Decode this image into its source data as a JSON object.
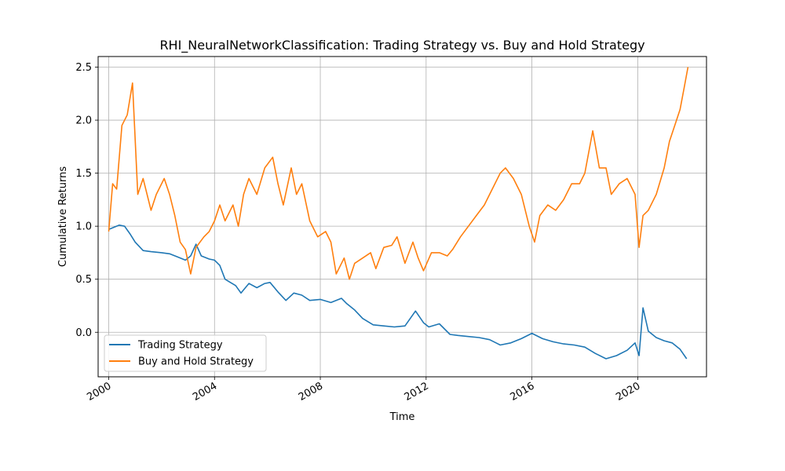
{
  "chart_data": {
    "type": "line",
    "title": "RHI_NeuralNetworkClassification: Trading Strategy vs. Buy and Hold Strategy",
    "xlabel": "Time",
    "ylabel": "Cumulative Returns",
    "xlim": [
      1999.6,
      2022.6
    ],
    "ylim": [
      -0.42,
      2.6
    ],
    "x_ticks": [
      2000,
      2004,
      2008,
      2012,
      2016,
      2020
    ],
    "x_tick_labels": [
      "2000",
      "2004",
      "2008",
      "2012",
      "2016",
      "2020"
    ],
    "y_ticks": [
      0.0,
      0.5,
      1.0,
      1.5,
      2.0,
      2.5
    ],
    "y_tick_labels": [
      "0.0",
      "0.5",
      "1.0",
      "1.5",
      "2.0",
      "2.5"
    ],
    "grid": true,
    "legend_position": "lower-left",
    "series": [
      {
        "name": "Trading Strategy",
        "color": "#1f77b4",
        "x": [
          2000.0,
          2000.2,
          2000.4,
          2000.6,
          2000.8,
          2001.0,
          2001.3,
          2001.6,
          2002.0,
          2002.3,
          2002.6,
          2002.9,
          2003.1,
          2003.3,
          2003.5,
          2003.8,
          2004.0,
          2004.2,
          2004.4,
          2004.6,
          2004.8,
          2005.0,
          2005.3,
          2005.6,
          2005.9,
          2006.1,
          2006.4,
          2006.7,
          2007.0,
          2007.3,
          2007.6,
          2008.0,
          2008.4,
          2008.8,
          2009.0,
          2009.3,
          2009.6,
          2010.0,
          2010.4,
          2010.8,
          2011.2,
          2011.6,
          2011.9,
          2012.1,
          2012.5,
          2012.9,
          2013.2,
          2013.6,
          2014.0,
          2014.4,
          2014.8,
          2015.2,
          2015.6,
          2016.0,
          2016.4,
          2016.8,
          2017.2,
          2017.6,
          2018.0,
          2018.4,
          2018.8,
          2019.2,
          2019.6,
          2019.9,
          2020.05,
          2020.2,
          2020.4,
          2020.7,
          2021.0,
          2021.3,
          2021.6,
          2021.85
        ],
        "y": [
          0.97,
          0.99,
          1.01,
          1.0,
          0.93,
          0.85,
          0.77,
          0.76,
          0.75,
          0.74,
          0.71,
          0.68,
          0.72,
          0.83,
          0.72,
          0.69,
          0.68,
          0.63,
          0.5,
          0.47,
          0.44,
          0.37,
          0.46,
          0.42,
          0.46,
          0.47,
          0.38,
          0.3,
          0.37,
          0.35,
          0.3,
          0.31,
          0.28,
          0.32,
          0.27,
          0.21,
          0.13,
          0.07,
          0.06,
          0.05,
          0.06,
          0.2,
          0.09,
          0.05,
          0.08,
          -0.02,
          -0.03,
          -0.04,
          -0.05,
          -0.07,
          -0.12,
          -0.1,
          -0.06,
          -0.01,
          -0.06,
          -0.09,
          -0.11,
          -0.12,
          -0.14,
          -0.2,
          -0.25,
          -0.22,
          -0.17,
          -0.1,
          -0.22,
          0.23,
          0.01,
          -0.05,
          -0.08,
          -0.1,
          -0.16,
          -0.25
        ]
      },
      {
        "name": "Buy and Hold Strategy",
        "color": "#ff7f0e",
        "x": [
          2000.0,
          2000.15,
          2000.3,
          2000.5,
          2000.7,
          2000.9,
          2001.1,
          2001.3,
          2001.6,
          2001.8,
          2002.1,
          2002.3,
          2002.5,
          2002.7,
          2002.9,
          2003.1,
          2003.3,
          2003.6,
          2003.8,
          2004.0,
          2004.2,
          2004.4,
          2004.7,
          2004.9,
          2005.1,
          2005.3,
          2005.6,
          2005.9,
          2006.2,
          2006.4,
          2006.6,
          2006.9,
          2007.1,
          2007.3,
          2007.6,
          2007.9,
          2008.2,
          2008.4,
          2008.6,
          2008.9,
          2009.1,
          2009.3,
          2009.6,
          2009.9,
          2010.1,
          2010.4,
          2010.7,
          2010.9,
          2011.2,
          2011.5,
          2011.7,
          2011.9,
          2012.2,
          2012.5,
          2012.8,
          2013.0,
          2013.3,
          2013.6,
          2013.9,
          2014.2,
          2014.5,
          2014.8,
          2015.0,
          2015.3,
          2015.6,
          2015.9,
          2016.1,
          2016.3,
          2016.6,
          2016.9,
          2017.2,
          2017.5,
          2017.8,
          2018.0,
          2018.3,
          2018.55,
          2018.8,
          2019.0,
          2019.3,
          2019.6,
          2019.9,
          2020.05,
          2020.2,
          2020.4,
          2020.7,
          2021.0,
          2021.2,
          2021.4,
          2021.6,
          2021.75,
          2021.9
        ],
        "y": [
          0.95,
          1.4,
          1.35,
          1.95,
          2.05,
          2.35,
          1.3,
          1.45,
          1.15,
          1.3,
          1.45,
          1.3,
          1.1,
          0.85,
          0.78,
          0.55,
          0.8,
          0.9,
          0.95,
          1.05,
          1.2,
          1.05,
          1.2,
          1.0,
          1.3,
          1.45,
          1.3,
          1.55,
          1.65,
          1.4,
          1.2,
          1.55,
          1.3,
          1.4,
          1.05,
          0.9,
          0.95,
          0.85,
          0.55,
          0.7,
          0.5,
          0.65,
          0.7,
          0.75,
          0.6,
          0.8,
          0.82,
          0.9,
          0.65,
          0.85,
          0.7,
          0.58,
          0.75,
          0.75,
          0.72,
          0.78,
          0.9,
          1.0,
          1.1,
          1.2,
          1.35,
          1.5,
          1.55,
          1.45,
          1.3,
          1.0,
          0.85,
          1.1,
          1.2,
          1.15,
          1.25,
          1.4,
          1.4,
          1.5,
          1.9,
          1.55,
          1.55,
          1.3,
          1.4,
          1.45,
          1.3,
          0.8,
          1.1,
          1.15,
          1.3,
          1.55,
          1.8,
          1.95,
          2.1,
          2.3,
          2.5
        ]
      }
    ]
  }
}
